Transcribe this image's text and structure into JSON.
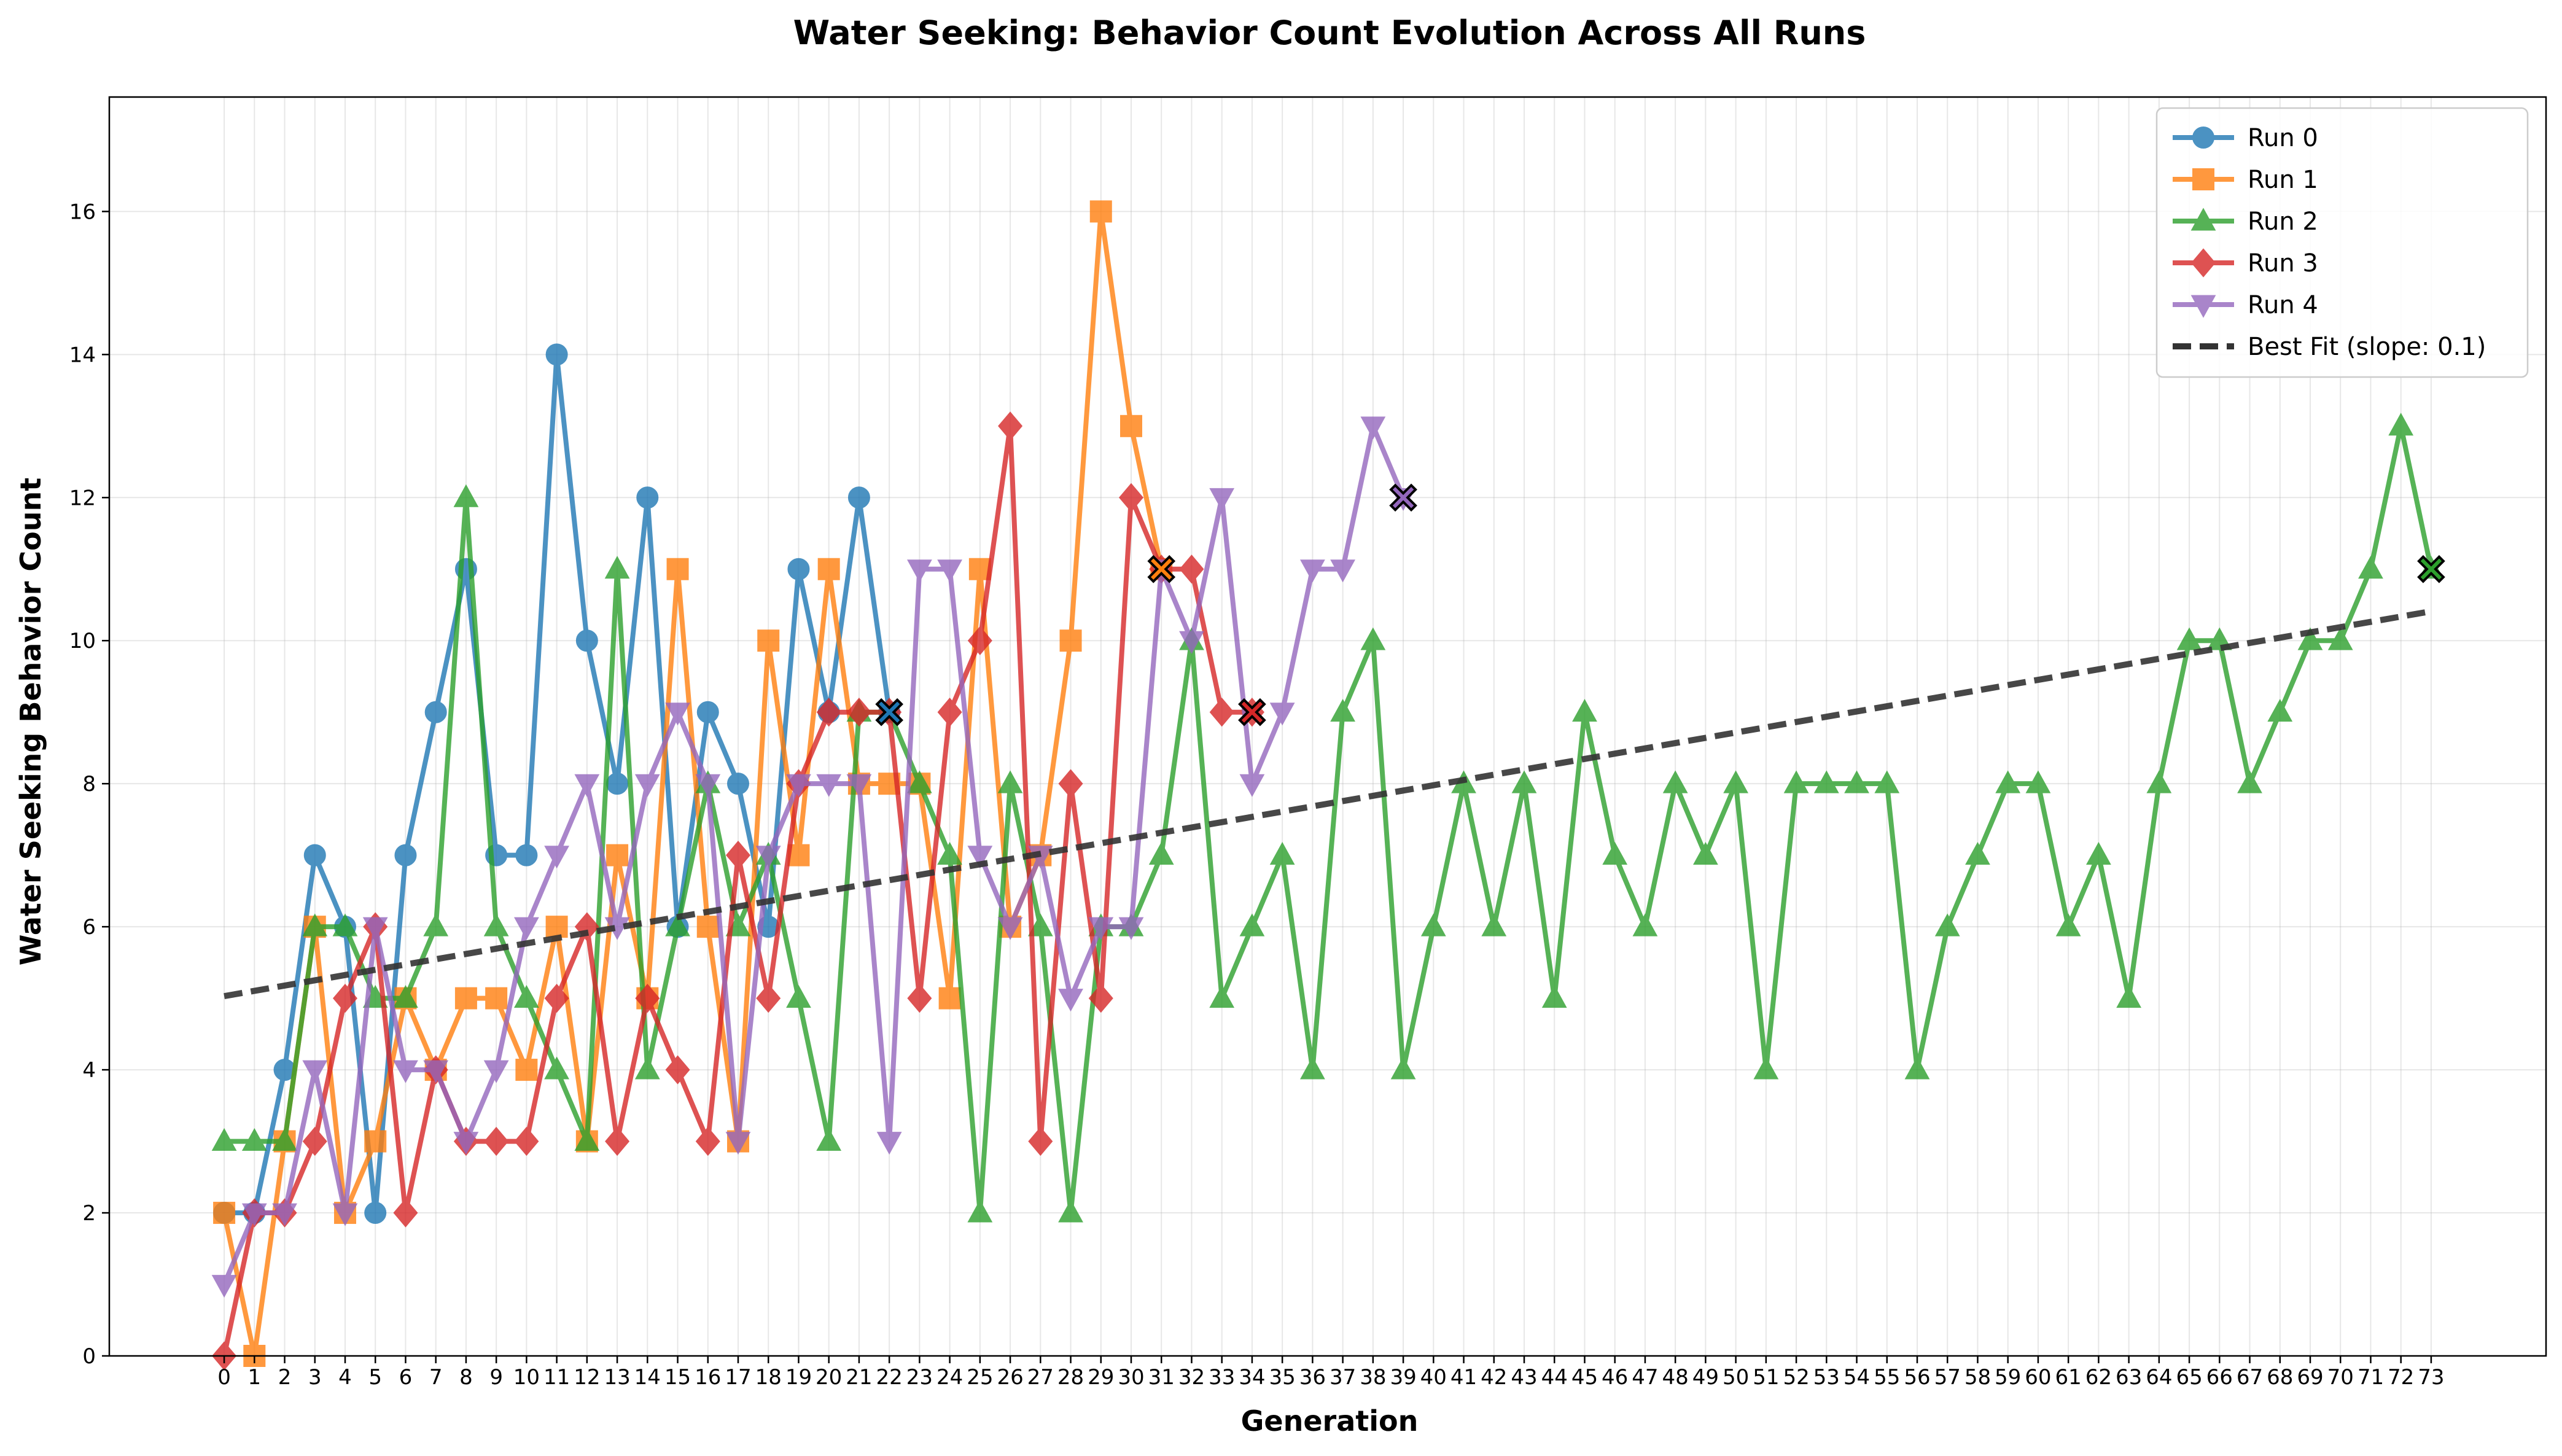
{
  "chart_data": {
    "type": "line",
    "title": "Water Seeking: Behavior Count Evolution Across All Runs",
    "xlabel": "Generation",
    "ylabel": "Water Seeking Behavior Count",
    "xlim": [
      -3.8,
      76.8
    ],
    "ylim": [
      0,
      17.6
    ],
    "yticks": [
      0,
      2,
      4,
      6,
      8,
      10,
      12,
      14,
      16
    ],
    "xticks": [
      0,
      1,
      2,
      3,
      4,
      5,
      6,
      7,
      8,
      9,
      10,
      11,
      12,
      13,
      14,
      15,
      16,
      17,
      18,
      19,
      20,
      21,
      22,
      23,
      24,
      25,
      26,
      27,
      28,
      29,
      30,
      31,
      32,
      33,
      34,
      35,
      36,
      37,
      38,
      39,
      40,
      41,
      42,
      43,
      44,
      45,
      46,
      47,
      48,
      49,
      50,
      51,
      52,
      53,
      54,
      55,
      56,
      57,
      58,
      59,
      60,
      61,
      62,
      63,
      64,
      65,
      66,
      67,
      68,
      69,
      70,
      71,
      72,
      73
    ],
    "grid": true,
    "legend_position": "upper right",
    "series": [
      {
        "name": "Run 0",
        "color": "#1f77b4",
        "marker": "circle",
        "values": [
          2,
          2,
          4,
          7,
          6,
          2,
          7,
          9,
          11,
          7,
          7,
          14,
          10,
          8,
          12,
          6,
          9,
          8,
          6,
          11,
          9,
          12,
          9
        ]
      },
      {
        "name": "Run 1",
        "color": "#ff7f0e",
        "marker": "square",
        "values": [
          2,
          0,
          3,
          6,
          2,
          3,
          5,
          4,
          5,
          5,
          4,
          6,
          3,
          7,
          5,
          11,
          6,
          3,
          10,
          7,
          11,
          8,
          8,
          8,
          5,
          11,
          6,
          7,
          10,
          16,
          13,
          11
        ]
      },
      {
        "name": "Run 2",
        "color": "#2ca02c",
        "marker": "triangle-up",
        "values": [
          3,
          3,
          3,
          6,
          6,
          5,
          5,
          6,
          12,
          6,
          5,
          4,
          3,
          11,
          4,
          6,
          8,
          6,
          7,
          5,
          3,
          9,
          9,
          8,
          7,
          2,
          8,
          6,
          2,
          6,
          6,
          7,
          10,
          5,
          6,
          7,
          4,
          9,
          10,
          4,
          6,
          8,
          6,
          8,
          5,
          9,
          7,
          6,
          8,
          7,
          8,
          4,
          8,
          8,
          8,
          8,
          4,
          6,
          7,
          8,
          8,
          6,
          7,
          5,
          8,
          10,
          10,
          8,
          9,
          10,
          10,
          11,
          13,
          11
        ]
      },
      {
        "name": "Run 3",
        "color": "#d62728",
        "marker": "diamond",
        "values": [
          0,
          2,
          2,
          3,
          5,
          6,
          2,
          4,
          3,
          3,
          3,
          5,
          6,
          3,
          5,
          4,
          3,
          7,
          5,
          8,
          9,
          9,
          9,
          5,
          9,
          10,
          13,
          3,
          8,
          5,
          12,
          11,
          11,
          9,
          9
        ]
      },
      {
        "name": "Run 4",
        "color": "#9467bd",
        "marker": "triangle-down",
        "values": [
          1,
          2,
          2,
          4,
          2,
          6,
          4,
          4,
          3,
          4,
          6,
          7,
          8,
          6,
          8,
          9,
          8,
          3,
          7,
          8,
          8,
          8,
          3,
          11,
          11,
          7,
          6,
          7,
          5,
          6,
          6,
          11,
          10,
          12,
          8,
          9,
          11,
          11,
          13,
          12
        ]
      },
      {
        "name": "Best Fit (slope: 0.1)",
        "color": "#333333",
        "style": "dashed",
        "x": [
          0,
          73
        ],
        "values": [
          5.03,
          10.41
        ]
      }
    ]
  }
}
